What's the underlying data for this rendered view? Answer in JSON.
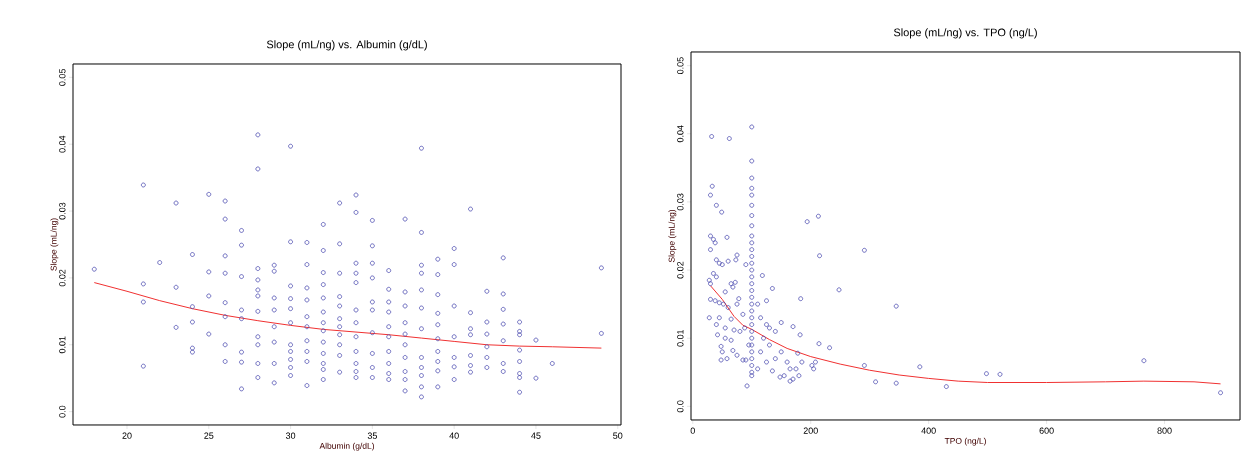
{
  "chart_data": [
    {
      "type": "scatter",
      "title": "Slope (mL/ng) vs. Albumin (g/dL)",
      "xlabel": "Albumin (g/dL)",
      "ylabel": "Slope (mL/ng)",
      "xlim": [
        16.7,
        50.2
      ],
      "ylim": [
        -0.002,
        0.052
      ],
      "xticks": [
        20,
        25,
        30,
        35,
        40,
        45,
        50
      ],
      "yticks": [
        {
          "value": 0,
          "label": "0.0"
        },
        0.01,
        0.02,
        0.03,
        0.04,
        0.05
      ],
      "marker": "circle",
      "series": [
        {
          "type": "scatter",
          "color": "#4b4bb0",
          "x": [
            18,
            21,
            21,
            21,
            21,
            22,
            23,
            23,
            23,
            24,
            24,
            24,
            24,
            24,
            25,
            25,
            25,
            25,
            26,
            26,
            26,
            26,
            26,
            26,
            26,
            26,
            27,
            27,
            27,
            27,
            27,
            27,
            27,
            27,
            28,
            28,
            28,
            28,
            28,
            28,
            28,
            28,
            28,
            28,
            28,
            29,
            29,
            29,
            29,
            29,
            29,
            29,
            29,
            30,
            30,
            30,
            30,
            30,
            30,
            30,
            30,
            30,
            30,
            30,
            31,
            31,
            31,
            31,
            31,
            31,
            31,
            31,
            31,
            31,
            32,
            32,
            32,
            32,
            32,
            32,
            32,
            32,
            32,
            32,
            32,
            32,
            32,
            33,
            33,
            33,
            33,
            33,
            33,
            33,
            33,
            33,
            33,
            33,
            34,
            34,
            34,
            34,
            34,
            34,
            34,
            34,
            34,
            34,
            34,
            34,
            35,
            35,
            35,
            35,
            35,
            35,
            35,
            35,
            35,
            35,
            36,
            36,
            36,
            36,
            36,
            36,
            36,
            36,
            36,
            36,
            37,
            37,
            37,
            37,
            37,
            37,
            37,
            37,
            37,
            37,
            38,
            38,
            38,
            38,
            38,
            38,
            38,
            38,
            38,
            38,
            38,
            38,
            39,
            39,
            39,
            39,
            39,
            39,
            39,
            39,
            39,
            39,
            40,
            40,
            40,
            40,
            40,
            40,
            40,
            41,
            41,
            41,
            41,
            41,
            41,
            41,
            42,
            42,
            42,
            42,
            42,
            42,
            43,
            43,
            43,
            43,
            43,
            43,
            43,
            44,
            44,
            44,
            44,
            44,
            44,
            44,
            44,
            45,
            45,
            46,
            49,
            49
          ],
          "values": [
            0.0213,
            0.0339,
            0.0191,
            0.0164,
            0.0068,
            0.0223,
            0.0312,
            0.0186,
            0.0126,
            0.0235,
            0.0157,
            0.0134,
            0.0095,
            0.0089,
            0.0325,
            0.0209,
            0.0173,
            0.0116,
            0.0315,
            0.0288,
            0.0233,
            0.0207,
            0.0163,
            0.0142,
            0.01,
            0.0075,
            0.0271,
            0.0249,
            0.0202,
            0.0152,
            0.0139,
            0.0089,
            0.0074,
            0.0034,
            0.0414,
            0.0363,
            0.0214,
            0.0197,
            0.0182,
            0.0173,
            0.015,
            0.0112,
            0.01,
            0.0072,
            0.0051,
            0.0219,
            0.021,
            0.017,
            0.0152,
            0.0127,
            0.0104,
            0.0072,
            0.0043,
            0.0397,
            0.0254,
            0.0188,
            0.0169,
            0.0154,
            0.0133,
            0.01,
            0.009,
            0.0078,
            0.0066,
            0.0054,
            0.0253,
            0.022,
            0.0185,
            0.0167,
            0.0142,
            0.0127,
            0.0106,
            0.009,
            0.0075,
            0.0039,
            0.028,
            0.0241,
            0.0208,
            0.019,
            0.017,
            0.0149,
            0.0133,
            0.0121,
            0.0104,
            0.0087,
            0.0072,
            0.0063,
            0.0048,
            0.0312,
            0.0251,
            0.0207,
            0.0172,
            0.0158,
            0.0139,
            0.0127,
            0.0115,
            0.01,
            0.0084,
            0.0059,
            0.0324,
            0.0298,
            0.0222,
            0.0207,
            0.0193,
            0.0152,
            0.0133,
            0.0112,
            0.009,
            0.0072,
            0.006,
            0.0051,
            0.0286,
            0.0248,
            0.0222,
            0.02,
            0.0164,
            0.0152,
            0.0118,
            0.0087,
            0.0066,
            0.0051,
            0.0211,
            0.0183,
            0.0164,
            0.0149,
            0.0127,
            0.0112,
            0.009,
            0.0072,
            0.0057,
            0.0048,
            0.0288,
            0.0179,
            0.0158,
            0.0133,
            0.0116,
            0.01,
            0.0081,
            0.006,
            0.0048,
            0.0031,
            0.0394,
            0.0268,
            0.0219,
            0.0207,
            0.0182,
            0.0155,
            0.0124,
            0.0081,
            0.0066,
            0.0054,
            0.0037,
            0.0022,
            0.0228,
            0.0205,
            0.0175,
            0.0147,
            0.013,
            0.0109,
            0.009,
            0.0075,
            0.0061,
            0.0037,
            0.0244,
            0.022,
            0.0158,
            0.0112,
            0.0081,
            0.0067,
            0.0048,
            0.0303,
            0.0148,
            0.0124,
            0.0115,
            0.0084,
            0.0069,
            0.0059,
            0.018,
            0.0134,
            0.0116,
            0.0097,
            0.0081,
            0.0066,
            0.023,
            0.0176,
            0.0153,
            0.0131,
            0.0106,
            0.0072,
            0.006,
            0.0134,
            0.012,
            0.0115,
            0.0092,
            0.0075,
            0.0057,
            0.0051,
            0.0029,
            0.0107,
            0.005,
            0.0072,
            0.0215,
            0.0117
          ]
        },
        {
          "type": "line",
          "color": "#f03030",
          "marker": "none",
          "x": [
            18,
            20,
            22,
            24,
            26,
            28,
            30,
            32,
            34,
            36,
            38,
            40,
            42,
            44,
            46,
            49
          ],
          "values": [
            0.0193,
            0.018,
            0.0166,
            0.0154,
            0.0144,
            0.0136,
            0.0129,
            0.0123,
            0.0119,
            0.0115,
            0.011,
            0.0105,
            0.01,
            0.0098,
            0.0097,
            0.0095
          ]
        }
      ]
    },
    {
      "type": "scatter",
      "title": "Slope (mL/ng) vs. TPO (ng/L)",
      "xlabel": "TPO (ng/L)",
      "ylabel": "Slope (mL/ng)",
      "xlim": [
        -3,
        928
      ],
      "ylim": [
        -0.002,
        0.052
      ],
      "xticks": [
        0,
        200,
        400,
        600,
        800
      ],
      "yticks": [
        {
          "value": 0,
          "label": "0.0"
        },
        0.01,
        0.02,
        0.03,
        0.04,
        0.05
      ],
      "marker": "circle",
      "series": [
        {
          "type": "scatter",
          "color": "#4b4bb0",
          "x": [
            100,
            100,
            100,
            100,
            100,
            100,
            100,
            100,
            100,
            100,
            100,
            100,
            100,
            100,
            100,
            100,
            100,
            100,
            100,
            100,
            100,
            100,
            100,
            100,
            100,
            100,
            100,
            100,
            100,
            100,
            32,
            62,
            33,
            30,
            40,
            49,
            30,
            35,
            38,
            58,
            30,
            40,
            45,
            50,
            60,
            75,
            73,
            90,
            35,
            40,
            28,
            30,
            65,
            68,
            72,
            55,
            78,
            30,
            38,
            45,
            52,
            60,
            75,
            28,
            45,
            65,
            85,
            40,
            55,
            70,
            80,
            42,
            55,
            65,
            48,
            50,
            68,
            75,
            48,
            58,
            85,
            90,
            92,
            95,
            88,
            118,
            125,
            110,
            135,
            115,
            125,
            130,
            140,
            150,
            170,
            120,
            130,
            115,
            125,
            140,
            110,
            135,
            150,
            155,
            148,
            160,
            165,
            170,
            165,
            175,
            178,
            182,
            183,
            185,
            180,
            202,
            205,
            208,
            194,
            213,
            215,
            214,
            232,
            248,
            291,
            291,
            310,
            345,
            345,
            385,
            430,
            498,
            521,
            765,
            895
          ],
          "values": [
            0.041,
            0.036,
            0.0335,
            0.032,
            0.031,
            0.0295,
            0.028,
            0.0265,
            0.025,
            0.024,
            0.023,
            0.022,
            0.021,
            0.02,
            0.019,
            0.018,
            0.017,
            0.016,
            0.015,
            0.014,
            0.013,
            0.012,
            0.011,
            0.01,
            0.009,
            0.008,
            0.007,
            0.006,
            0.005,
            0.0045,
            0.0396,
            0.0393,
            0.0323,
            0.031,
            0.0295,
            0.0285,
            0.025,
            0.0245,
            0.024,
            0.0248,
            0.023,
            0.0215,
            0.021,
            0.0208,
            0.0213,
            0.0222,
            0.0215,
            0.0208,
            0.0195,
            0.019,
            0.0185,
            0.018,
            0.018,
            0.0175,
            0.0182,
            0.0168,
            0.0158,
            0.0157,
            0.0155,
            0.0152,
            0.015,
            0.0145,
            0.015,
            0.013,
            0.013,
            0.0128,
            0.0135,
            0.012,
            0.0115,
            0.0112,
            0.011,
            0.0105,
            0.01,
            0.0097,
            0.0088,
            0.008,
            0.0082,
            0.0075,
            0.0068,
            0.007,
            0.0068,
            0.0068,
            0.003,
            0.009,
            0.0115,
            0.0192,
            0.0155,
            0.015,
            0.0173,
            0.013,
            0.012,
            0.0115,
            0.011,
            0.0123,
            0.0117,
            0.01,
            0.009,
            0.008,
            0.0065,
            0.007,
            0.0055,
            0.0052,
            0.008,
            0.0045,
            0.0043,
            0.0065,
            0.0055,
            0.004,
            0.0037,
            0.0055,
            0.0078,
            0.0105,
            0.0158,
            0.0065,
            0.0045,
            0.006,
            0.0055,
            0.0065,
            0.0271,
            0.0279,
            0.0221,
            0.0092,
            0.0086,
            0.0171,
            0.0229,
            0.006,
            0.0036,
            0.0147,
            0.0034,
            0.0058,
            0.0029,
            0.0048,
            0.0047,
            0.0067,
            0.002
          ]
        },
        {
          "type": "line",
          "color": "#f03030",
          "marker": "none",
          "x": [
            30,
            50,
            70,
            85,
            100,
            130,
            160,
            200,
            250,
            300,
            350,
            400,
            450,
            500,
            600,
            700,
            765,
            850,
            895
          ],
          "values": [
            0.0177,
            0.0157,
            0.0132,
            0.0119,
            0.0113,
            0.0098,
            0.0085,
            0.0073,
            0.0062,
            0.0053,
            0.0046,
            0.0041,
            0.0037,
            0.0035,
            0.0035,
            0.0036,
            0.0037,
            0.0036,
            0.0033
          ]
        }
      ]
    }
  ]
}
